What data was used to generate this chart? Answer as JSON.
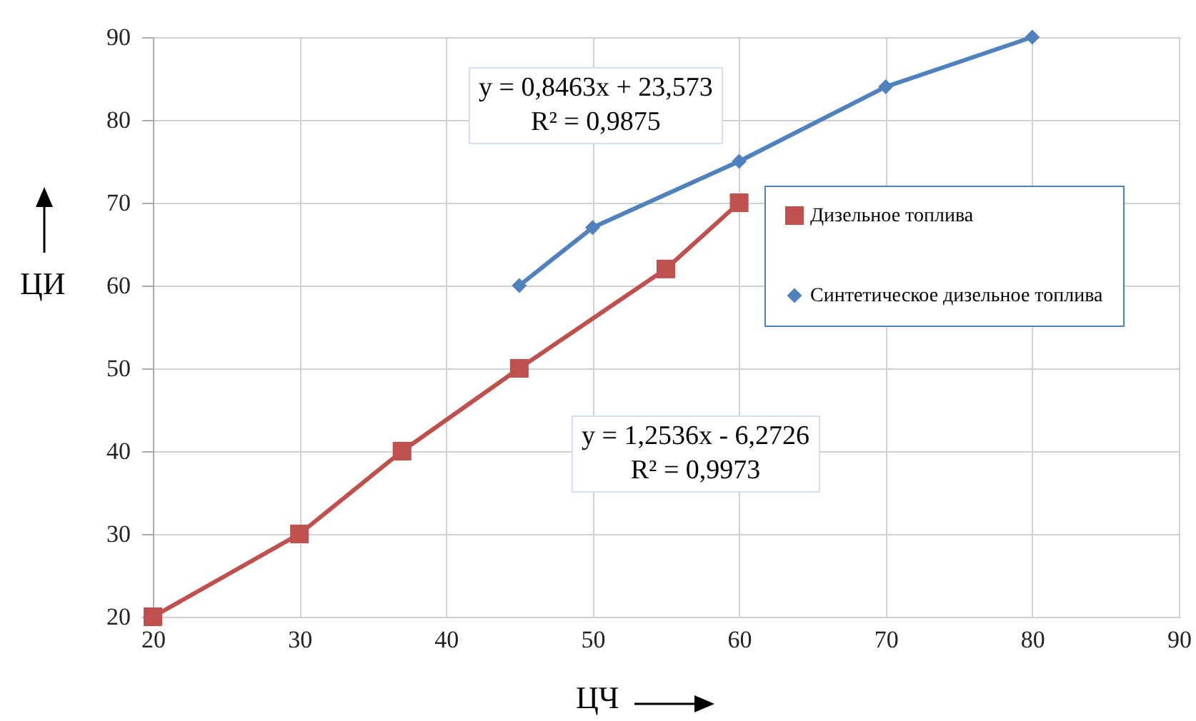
{
  "chart_data": {
    "type": "line",
    "xlabel": "ЦЧ",
    "ylabel": "ЦИ",
    "xlim": [
      20,
      90
    ],
    "xticks": [
      20,
      30,
      40,
      50,
      60,
      70,
      80,
      90
    ],
    "ylim": [
      20,
      90
    ],
    "yticks": [
      20,
      30,
      40,
      50,
      60,
      70,
      80,
      90
    ],
    "grid": true,
    "legend": "right",
    "series": [
      {
        "name": "Дизельное топлива",
        "color": "#c0504d",
        "marker": "square",
        "x": [
          20,
          30,
          37,
          45,
          55,
          60
        ],
        "values": [
          20,
          30,
          40,
          50,
          62,
          70
        ]
      },
      {
        "name": "Синтетическое дизельное топлива",
        "color": "#4f81bd",
        "marker": "diamond",
        "x": [
          45,
          50,
          60,
          70,
          80
        ],
        "values": [
          60,
          67,
          75,
          84,
          90
        ]
      }
    ],
    "annotations": [
      "y = 0,8463x + 23,573\nR² = 0,9875",
      "y = 1,2536x - 6,2726\nR² = 0,9973"
    ]
  }
}
